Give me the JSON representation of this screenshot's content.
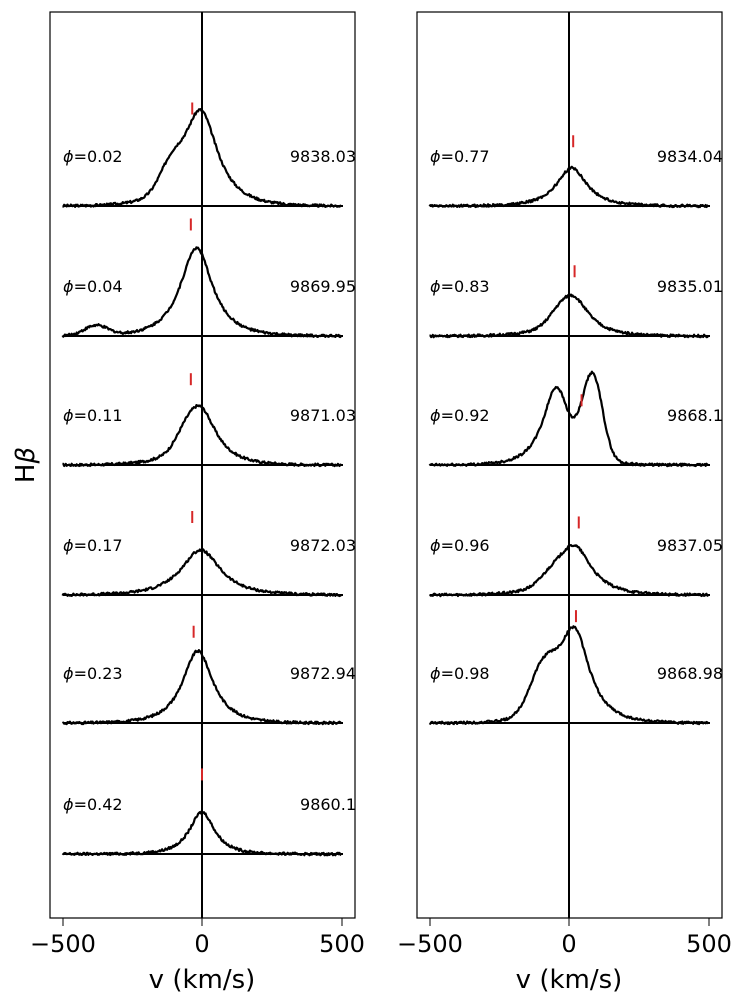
{
  "chart_data": {
    "type": "line",
    "title": "",
    "ylabel_prefix": "H",
    "ylabel_symbol": "β",
    "xlabel": "v (km/s)",
    "xlim": [
      -550,
      550
    ],
    "xticks": [
      -500,
      0,
      500
    ],
    "xtick_labels": [
      "−500",
      "0",
      "500"
    ],
    "phase_prefix": "ϕ",
    "panels": [
      {
        "id": "left",
        "spectra": [
          {
            "phase": "=0.02",
            "date": "9838.03",
            "peak": 0.95,
            "width": 95,
            "center": -5,
            "shoulder": {
              "amp": 0.25,
              "center": -110,
              "width": 60
            },
            "marker": -35,
            "marker_offset": 0.3
          },
          {
            "phase": "=0.04",
            "date": "9869.95",
            "peak": 0.88,
            "width": 90,
            "center": -20,
            "shoulder": {
              "amp": 0.1,
              "center": -380,
              "width": 60
            },
            "marker": -40,
            "marker_offset": 0.55
          },
          {
            "phase": "=0.11",
            "date": "9871.03",
            "peak": 0.55,
            "width": 90,
            "center": -5,
            "shoulder": {
              "amp": 0.12,
              "center": -60,
              "width": 50
            },
            "marker": -40,
            "marker_offset": 0.55
          },
          {
            "phase": "=0.17",
            "date": "9872.03",
            "peak": 0.45,
            "width": 110,
            "center": -5,
            "shoulder": {
              "amp": 0,
              "center": 0,
              "width": 50
            },
            "marker": -35,
            "marker_offset": 0.55
          },
          {
            "phase": "=0.23",
            "date": "9872.94",
            "peak": 0.72,
            "width": 85,
            "center": -15,
            "shoulder": {
              "amp": 0,
              "center": 0,
              "width": 50
            },
            "marker": -30,
            "marker_offset": 0.45
          },
          {
            "phase": "=0.42",
            "date": "9860.1",
            "peak": 0.42,
            "width": 70,
            "center": 0,
            "shoulder": {
              "amp": 0,
              "center": 0,
              "width": 50
            },
            "marker": 0,
            "marker_offset": 0.6
          }
        ]
      },
      {
        "id": "right",
        "spectra": [
          {
            "phase": "=0.77",
            "date": "9834.04",
            "peak": 0.38,
            "width": 85,
            "center": 10,
            "shoulder": {
              "amp": 0,
              "center": 0,
              "width": 50
            },
            "marker": 15,
            "marker_offset": 0.45
          },
          {
            "phase": "=0.83",
            "date": "9835.01",
            "peak": 0.38,
            "width": 90,
            "center": 15,
            "shoulder": {
              "amp": 0.08,
              "center": -40,
              "width": 50
            },
            "marker": 20,
            "marker_offset": 0.45
          },
          {
            "phase": "=0.92",
            "date": "9868.1",
            "peak": 0.78,
            "width": 75,
            "center": -45,
            "shoulder": {
              "amp": 0.82,
              "center": 85,
              "width": 50
            },
            "marker": 45,
            "marker_offset": 0.05
          },
          {
            "phase": "=0.96",
            "date": "9837.05",
            "peak": 0.48,
            "width": 95,
            "center": 20,
            "shoulder": {
              "amp": 0.1,
              "center": -60,
              "width": 60
            },
            "marker": 35,
            "marker_offset": 0.45
          },
          {
            "phase": "=0.98",
            "date": "9868.98",
            "peak": 0.92,
            "width": 85,
            "center": 20,
            "shoulder": {
              "amp": 0.45,
              "center": -90,
              "width": 70
            },
            "marker": 25,
            "marker_offset": 0.45
          }
        ]
      }
    ],
    "colors": {
      "line": "#000000",
      "marker": "#d62728"
    }
  }
}
